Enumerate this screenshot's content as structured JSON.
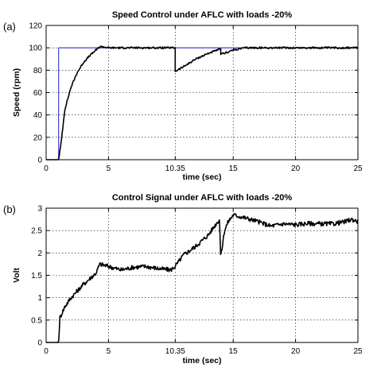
{
  "chart_data": [
    {
      "type": "line",
      "panel_label": "(a)",
      "title": "Speed Control under AFLC with  loads -20%",
      "xlabel": "time (sec)",
      "ylabel": "Speed (rpm)",
      "xlim": [
        0,
        25
      ],
      "ylim": [
        0,
        120
      ],
      "xtick_values": [
        0,
        5,
        10.35,
        15,
        20,
        25
      ],
      "xtick_labels": [
        "0",
        "5",
        "10.35",
        "15",
        "20",
        "25"
      ],
      "ytick_values": [
        0,
        20,
        40,
        60,
        80,
        100,
        120
      ],
      "ytick_labels": [
        "0",
        "20",
        "40",
        "60",
        "80",
        "100",
        "120"
      ],
      "grid": true,
      "series": [
        {
          "color": "#3333cc",
          "x": [
            0,
            1,
            1,
            14,
            14,
            25
          ],
          "y": [
            0,
            0,
            100,
            100,
            100,
            100
          ]
        },
        {
          "color": "#000000",
          "noise": 0.8,
          "x": [
            0,
            1,
            1.2,
            1.5,
            2,
            2.5,
            3,
            3.5,
            4,
            4.3,
            4.5,
            5,
            6,
            8,
            10,
            10.35,
            10.35,
            11,
            12,
            13,
            14,
            14,
            15,
            16,
            18,
            20,
            22,
            25
          ],
          "y": [
            0,
            0,
            15,
            45,
            65,
            78,
            87,
            93,
            98,
            101,
            101,
            100,
            100,
            100,
            100,
            100,
            79,
            83,
            90,
            95,
            99,
            94,
            98,
            100,
            100,
            100,
            100,
            100
          ]
        }
      ]
    },
    {
      "type": "line",
      "panel_label": "(b)",
      "title": "Control Signal under AFLC with  loads -20%",
      "xlabel": "time (sec)",
      "ylabel": "Volt",
      "xlim": [
        0,
        25
      ],
      "ylim": [
        0,
        3
      ],
      "xtick_values": [
        0,
        5,
        10.35,
        15,
        20,
        25
      ],
      "xtick_labels": [
        "0",
        "5",
        "10.35",
        "15",
        "20",
        "25"
      ],
      "ytick_values": [
        0,
        0.5,
        1,
        1.5,
        2,
        2.5,
        3
      ],
      "ytick_labels": [
        "0",
        "0.5",
        "1",
        "1.5",
        "2",
        "2.5",
        "3"
      ],
      "grid": true,
      "series": [
        {
          "color": "#000000",
          "noise": 0.05,
          "x": [
            0,
            1,
            1.1,
            1.5,
            2,
            3,
            4,
            4.3,
            5,
            6,
            7,
            8,
            9,
            10,
            10.35,
            11,
            12,
            13,
            13.5,
            13.9,
            14,
            14.3,
            14.6,
            15,
            16,
            17,
            18,
            19,
            20,
            21,
            22,
            23,
            24,
            24.5,
            25
          ],
          "y": [
            0,
            0,
            0.55,
            0.8,
            1.0,
            1.3,
            1.55,
            1.75,
            1.7,
            1.62,
            1.68,
            1.7,
            1.65,
            1.62,
            1.7,
            1.95,
            2.15,
            2.4,
            2.6,
            2.75,
            1.9,
            2.5,
            2.7,
            2.85,
            2.78,
            2.7,
            2.6,
            2.65,
            2.63,
            2.66,
            2.65,
            2.65,
            2.7,
            2.75,
            2.7
          ]
        }
      ]
    }
  ]
}
